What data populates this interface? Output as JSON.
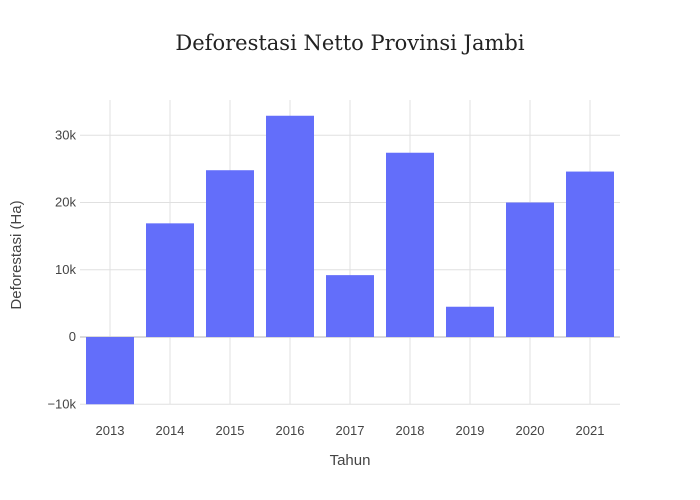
{
  "chart_data": {
    "type": "bar",
    "title": "Deforestasi Netto Provinsi Jambi",
    "xlabel": "Tahun",
    "ylabel": "Deforestasi (Ha)",
    "categories": [
      "2013",
      "2014",
      "2015",
      "2016",
      "2017",
      "2018",
      "2019",
      "2020",
      "2021"
    ],
    "values": [
      -10000,
      16900,
      24800,
      32900,
      9200,
      27400,
      4500,
      20000,
      24600
    ],
    "ylim": [
      -10000,
      35000
    ],
    "yticks": [
      -10000,
      0,
      10000,
      20000,
      30000
    ],
    "ytick_labels": [
      "−10k",
      "0",
      "10k",
      "20k",
      "30k"
    ],
    "bar_color": "#636efa",
    "grid": true
  }
}
